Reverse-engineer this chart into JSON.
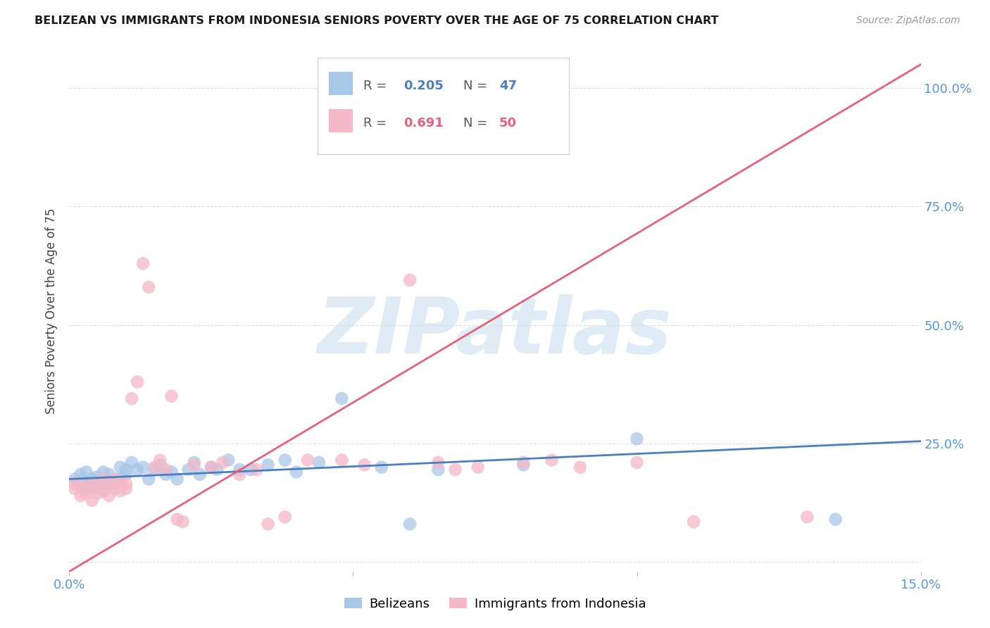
{
  "title": "BELIZEAN VS IMMIGRANTS FROM INDONESIA SENIORS POVERTY OVER THE AGE OF 75 CORRELATION CHART",
  "source": "Source: ZipAtlas.com",
  "ylabel": "Seniors Poverty Over the Age of 75",
  "xmin": 0.0,
  "xmax": 0.15,
  "ymin": -0.02,
  "ymax": 1.08,
  "yticks": [
    0.0,
    0.25,
    0.5,
    0.75,
    1.0
  ],
  "ytick_labels": [
    "",
    "25.0%",
    "50.0%",
    "75.0%",
    "100.0%"
  ],
  "xtick_vals": [
    0.0,
    0.05,
    0.1,
    0.15
  ],
  "xtick_labels": [
    "0.0%",
    "",
    "",
    "15.0%"
  ],
  "blue_R": "0.205",
  "blue_N": "47",
  "pink_R": "0.691",
  "pink_N": "50",
  "blue_color": "#a8c8e8",
  "pink_color": "#f4b8c8",
  "blue_line_color": "#4a7fc0",
  "pink_line_color": "#e8607a",
  "blue_line_x0": 0.0,
  "blue_line_x1": 0.15,
  "blue_line_y0": 0.175,
  "blue_line_y1": 0.255,
  "pink_line_x0": 0.0,
  "pink_line_x1": 0.15,
  "pink_line_y0": -0.02,
  "pink_line_y1": 1.05,
  "blue_scatter_x": [
    0.001,
    0.002,
    0.002,
    0.003,
    0.003,
    0.004,
    0.004,
    0.005,
    0.005,
    0.006,
    0.006,
    0.007,
    0.007,
    0.008,
    0.008,
    0.009,
    0.009,
    0.01,
    0.01,
    0.011,
    0.012,
    0.013,
    0.014,
    0.015,
    0.016,
    0.017,
    0.018,
    0.019,
    0.021,
    0.022,
    0.023,
    0.025,
    0.026,
    0.028,
    0.03,
    0.032,
    0.035,
    0.038,
    0.04,
    0.044,
    0.048,
    0.055,
    0.06,
    0.065,
    0.08,
    0.1,
    0.135
  ],
  "blue_scatter_y": [
    0.175,
    0.165,
    0.185,
    0.17,
    0.19,
    0.16,
    0.175,
    0.155,
    0.18,
    0.165,
    0.19,
    0.17,
    0.185,
    0.175,
    0.165,
    0.2,
    0.175,
    0.185,
    0.195,
    0.21,
    0.195,
    0.2,
    0.175,
    0.195,
    0.205,
    0.185,
    0.19,
    0.175,
    0.195,
    0.21,
    0.185,
    0.2,
    0.195,
    0.215,
    0.195,
    0.195,
    0.205,
    0.215,
    0.19,
    0.21,
    0.345,
    0.2,
    0.08,
    0.195,
    0.205,
    0.26,
    0.09
  ],
  "pink_scatter_x": [
    0.001,
    0.001,
    0.002,
    0.002,
    0.003,
    0.003,
    0.004,
    0.004,
    0.005,
    0.005,
    0.006,
    0.006,
    0.007,
    0.007,
    0.008,
    0.008,
    0.009,
    0.009,
    0.01,
    0.01,
    0.011,
    0.012,
    0.013,
    0.014,
    0.015,
    0.016,
    0.017,
    0.018,
    0.019,
    0.02,
    0.022,
    0.025,
    0.027,
    0.03,
    0.033,
    0.035,
    0.038,
    0.042,
    0.048,
    0.052,
    0.06,
    0.065,
    0.068,
    0.072,
    0.08,
    0.085,
    0.09,
    0.1,
    0.11,
    0.13
  ],
  "pink_scatter_y": [
    0.155,
    0.165,
    0.14,
    0.16,
    0.145,
    0.155,
    0.13,
    0.165,
    0.145,
    0.16,
    0.15,
    0.175,
    0.14,
    0.165,
    0.155,
    0.175,
    0.15,
    0.17,
    0.155,
    0.165,
    0.345,
    0.38,
    0.63,
    0.58,
    0.2,
    0.215,
    0.195,
    0.35,
    0.09,
    0.085,
    0.205,
    0.2,
    0.21,
    0.185,
    0.195,
    0.08,
    0.095,
    0.215,
    0.215,
    0.205,
    0.595,
    0.21,
    0.195,
    0.2,
    0.21,
    0.215,
    0.2,
    0.21,
    0.085,
    0.095
  ]
}
